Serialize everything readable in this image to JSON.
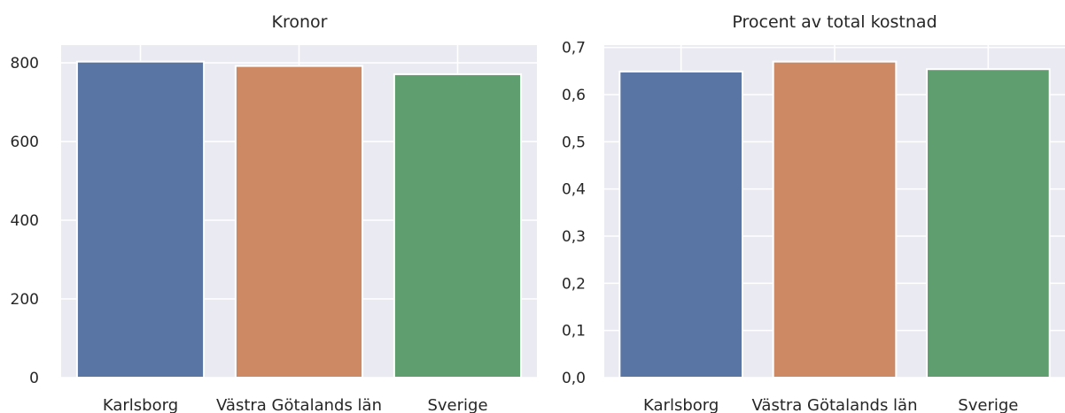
{
  "chart_data": [
    {
      "type": "bar",
      "title": "Kronor",
      "categories": [
        "Karlsborg",
        "Västra Götalands län",
        "Sverige"
      ],
      "values": [
        803,
        792,
        771
      ],
      "colors": [
        "#5875a4",
        "#cc8963",
        "#5f9e6e"
      ],
      "ylim": [
        0,
        845
      ],
      "yticks": [
        0,
        200,
        400,
        600,
        800
      ],
      "ytick_labels": [
        "0",
        "200",
        "400",
        "600",
        "800"
      ],
      "grid": true,
      "background": "#eaeaf2"
    },
    {
      "type": "bar",
      "title": "Procent av total kostnad",
      "categories": [
        "Karlsborg",
        "Västra Götalands län",
        "Sverige"
      ],
      "values": [
        0.649,
        0.67,
        0.654
      ],
      "colors": [
        "#5875a4",
        "#cc8963",
        "#5f9e6e"
      ],
      "ylim": [
        0,
        0.705
      ],
      "yticks": [
        0,
        0.1,
        0.2,
        0.3,
        0.4,
        0.5,
        0.6,
        0.7
      ],
      "ytick_labels": [
        "0,0",
        "0,1",
        "0,2",
        "0,3",
        "0,4",
        "0,5",
        "0,6",
        "0,7"
      ],
      "grid": true,
      "background": "#eaeaf2"
    }
  ]
}
